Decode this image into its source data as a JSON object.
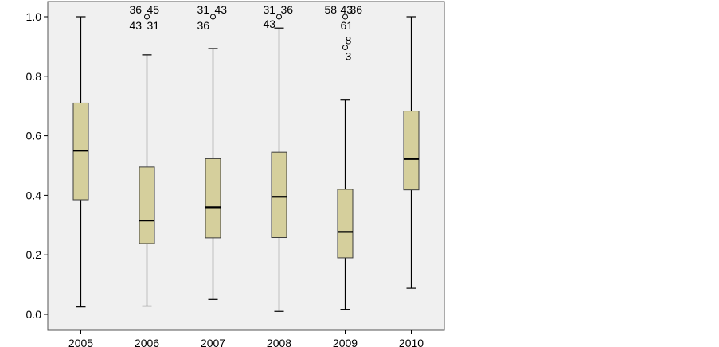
{
  "chart_data": {
    "type": "boxplot",
    "title": "",
    "xlabel": "",
    "ylabel": "",
    "ylim": [
      -0.04,
      1.04
    ],
    "y_ticks": [
      "0.0",
      "0.2",
      "0.4",
      "0.6",
      "0.8",
      "1.0"
    ],
    "grid": false,
    "legend": "none",
    "colors": {
      "plot_background": "#f0f0f0",
      "box_fill": "#d5cf9c",
      "box_stroke": "#3d3d3d",
      "median": "#000000",
      "whisker": "#000000"
    },
    "categories": [
      "2005",
      "2006",
      "2007",
      "2008",
      "2009",
      "2010"
    ],
    "boxes": [
      {
        "label": "2005",
        "min": 0.025,
        "q1": 0.385,
        "median": 0.55,
        "q3": 0.71,
        "max": 1.0,
        "outliers": []
      },
      {
        "label": "2006",
        "min": 0.028,
        "q1": 0.238,
        "median": 0.315,
        "q3": 0.495,
        "max": 0.872,
        "outliers": [
          {
            "value": 1.0,
            "labels": [
              "36",
              "45",
              "43",
              "31"
            ]
          }
        ]
      },
      {
        "label": "2007",
        "min": 0.05,
        "q1": 0.257,
        "median": 0.36,
        "q3": 0.523,
        "max": 0.893,
        "outliers": [
          {
            "value": 1.0,
            "labels": [
              "31",
              "43",
              "36"
            ]
          }
        ]
      },
      {
        "label": "2008",
        "min": 0.01,
        "q1": 0.258,
        "median": 0.395,
        "q3": 0.545,
        "max": 0.962,
        "outliers": [
          {
            "value": 1.0,
            "labels": [
              "31",
              "36",
              "43"
            ]
          }
        ]
      },
      {
        "label": "2009",
        "min": 0.017,
        "q1": 0.19,
        "median": 0.277,
        "q3": 0.42,
        "max": 0.72,
        "outliers": [
          {
            "value": 1.0,
            "labels": [
              "58",
              "43",
              "36",
              "61"
            ]
          },
          {
            "value": 0.897,
            "labels": [
              "8",
              "3"
            ]
          }
        ]
      },
      {
        "label": "2010",
        "min": 0.088,
        "q1": 0.418,
        "median": 0.522,
        "q3": 0.683,
        "max": 1.0,
        "outliers": []
      }
    ]
  }
}
